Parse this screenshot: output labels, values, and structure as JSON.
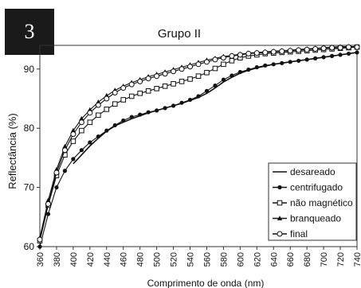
{
  "badge": "3",
  "chart_data": {
    "type": "line",
    "title": "Grupo II",
    "xlabel": "Comprimento de onda (nm)",
    "ylabel": "Reflectância (%)",
    "xlim": [
      360,
      740
    ],
    "ylim": [
      60,
      94
    ],
    "xticks": [
      360,
      380,
      400,
      420,
      440,
      460,
      480,
      500,
      520,
      540,
      560,
      580,
      600,
      620,
      640,
      660,
      680,
      700,
      720,
      740
    ],
    "yticks": [
      60,
      70,
      80,
      90
    ],
    "grid": false,
    "legend_position": "bottom-right",
    "x": [
      360,
      370,
      380,
      390,
      400,
      410,
      420,
      430,
      440,
      450,
      460,
      470,
      480,
      490,
      500,
      510,
      520,
      530,
      540,
      550,
      560,
      570,
      580,
      590,
      600,
      610,
      620,
      630,
      640,
      650,
      660,
      670,
      680,
      690,
      700,
      710,
      720,
      730,
      740
    ],
    "series": [
      {
        "name": "desareado",
        "marker": "none",
        "values": [
          null,
          null,
          null,
          null,
          74.0,
          75.5,
          77.0,
          78.3,
          79.5,
          80.4,
          81.0,
          81.6,
          82.1,
          82.6,
          83.0,
          83.4,
          83.8,
          84.2,
          84.7,
          85.2,
          85.9,
          86.8,
          87.8,
          88.6,
          89.3,
          89.8,
          90.2,
          90.5,
          90.8,
          91.0,
          91.2,
          91.4,
          91.6,
          91.8,
          92.0,
          92.2,
          92.4,
          92.6,
          92.8
        ]
      },
      {
        "name": "centrifugado",
        "marker": "filled-circle",
        "values": [
          60.0,
          65.5,
          70.0,
          72.8,
          74.8,
          76.3,
          77.6,
          78.6,
          79.6,
          80.5,
          81.3,
          81.9,
          82.3,
          82.7,
          83.0,
          83.4,
          83.8,
          84.3,
          84.8,
          85.4,
          86.3,
          87.2,
          88.2,
          88.9,
          89.5,
          89.9,
          90.3,
          90.6,
          90.8,
          91.0,
          91.2,
          91.4,
          91.6,
          91.8,
          92.0,
          92.2,
          92.4,
          92.6,
          92.8
        ]
      },
      {
        "name": "não magnético",
        "marker": "open-square",
        "values": [
          61.0,
          67.0,
          72.0,
          75.5,
          77.8,
          79.6,
          81.0,
          82.2,
          83.2,
          84.1,
          84.8,
          85.4,
          85.9,
          86.3,
          86.7,
          87.1,
          87.5,
          87.9,
          88.3,
          88.8,
          89.4,
          90.1,
          90.8,
          91.4,
          91.9,
          92.2,
          92.4,
          92.6,
          92.7,
          92.8,
          92.9,
          93.0,
          93.1,
          93.2,
          93.3,
          93.4,
          93.5,
          93.6,
          93.7
        ]
      },
      {
        "name": "branqueado",
        "marker": "filled-triangle",
        "values": [
          61.5,
          67.8,
          73.0,
          76.9,
          79.6,
          81.6,
          83.1,
          84.4,
          85.5,
          86.4,
          87.1,
          87.7,
          88.2,
          88.7,
          89.1,
          89.5,
          89.9,
          90.3,
          90.7,
          91.1,
          91.5,
          91.8,
          92.1,
          92.3,
          92.5,
          92.7,
          92.8,
          92.9,
          93.0,
          93.1,
          93.2,
          93.3,
          93.4,
          93.5,
          93.6,
          93.7,
          93.8,
          93.8,
          93.8
        ]
      },
      {
        "name": "final",
        "marker": "open-circle",
        "values": [
          61.2,
          67.2,
          72.5,
          76.3,
          79.0,
          81.0,
          82.6,
          83.9,
          85.0,
          86.0,
          86.8,
          87.4,
          87.9,
          88.4,
          88.8,
          89.2,
          89.6,
          90.0,
          90.4,
          90.8,
          91.2,
          91.6,
          91.9,
          92.2,
          92.4,
          92.6,
          92.7,
          92.8,
          92.9,
          93.0,
          93.1,
          93.2,
          93.3,
          93.4,
          93.5,
          93.6,
          93.6,
          93.7,
          93.7
        ]
      }
    ]
  }
}
